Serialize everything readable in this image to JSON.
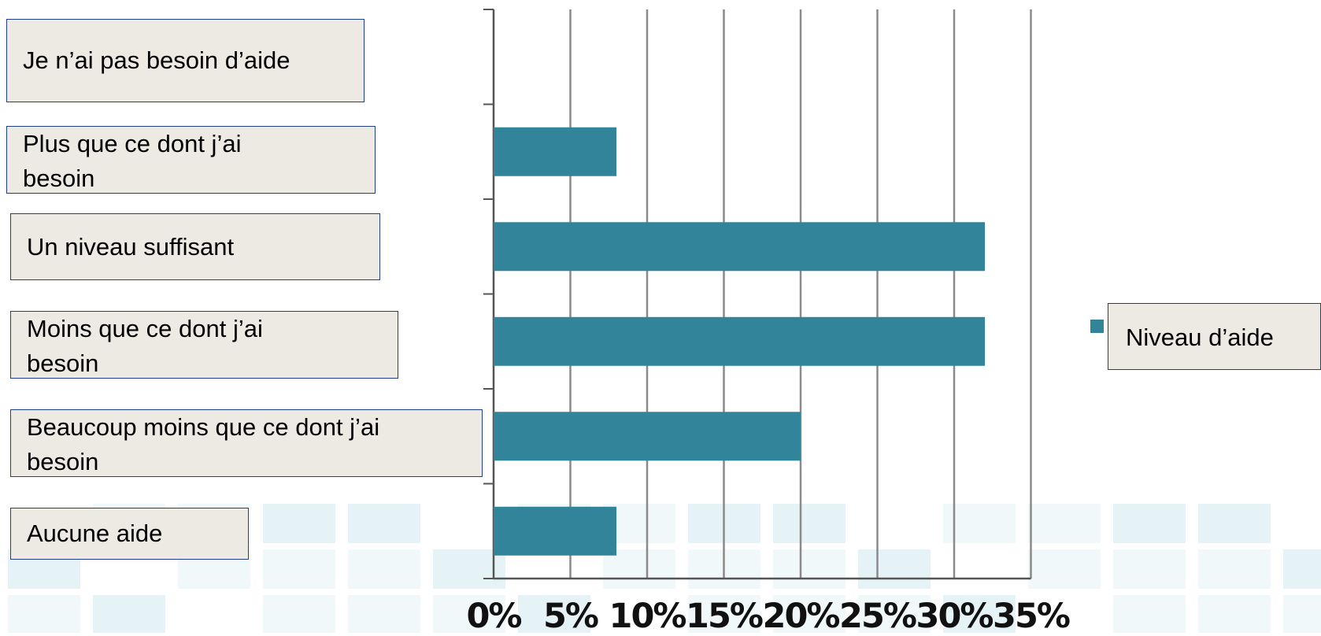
{
  "chart_data": {
    "type": "bar",
    "orientation": "horizontal",
    "categories": [
      "Je n’ai pas besoin d’aide",
      "Plus que ce dont j’ai\nbesoin",
      "Un niveau suffisant",
      "Moins que ce dont j’ai\nbesoin",
      "Beaucoup moins que ce dont j’ai\nbesoin",
      "Aucune aide"
    ],
    "series": [
      {
        "name": "Niveau d’aide",
        "values": [
          0,
          8,
          32,
          32,
          20,
          8
        ]
      }
    ],
    "xlim": [
      0,
      35
    ],
    "x_ticks": [
      "0%",
      "5%",
      "10%",
      "15%",
      "20%",
      "25%",
      "30%",
      "35%"
    ],
    "grid": "vertical",
    "legend_position": "right",
    "bar_color": "#32849a"
  }
}
